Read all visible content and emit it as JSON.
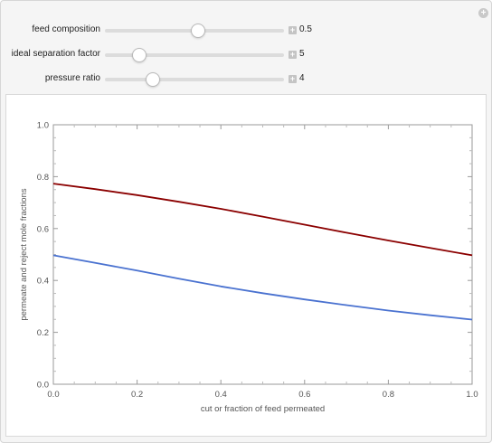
{
  "controls": [
    {
      "label": "feed composition",
      "value": "0.5",
      "fraction": 0.52
    },
    {
      "label": "ideal separation factor",
      "value": "5",
      "fraction": 0.19
    },
    {
      "label": "pressure ratio",
      "value": "4",
      "fraction": 0.27
    }
  ],
  "icons": {
    "corner": "plus-circle-icon",
    "stepper": "plus-icon"
  },
  "chart_data": {
    "type": "line",
    "xlabel": "cut or fraction of feed permeated",
    "ylabel": "permeate and reject mole fractions",
    "xlim": [
      0,
      1
    ],
    "ylim": [
      0,
      1
    ],
    "xticks": [
      "0.0",
      "0.2",
      "0.4",
      "0.6",
      "0.8",
      "1.0"
    ],
    "yticks": [
      "0.0",
      "0.2",
      "0.4",
      "0.6",
      "0.8",
      "1.0"
    ],
    "grid": false,
    "series": [
      {
        "color": "#8b0000",
        "x": [
          0,
          0.1,
          0.2,
          0.3,
          0.4,
          0.5,
          0.6,
          0.7,
          0.8,
          0.9,
          1.0
        ],
        "y": [
          0.773,
          0.752,
          0.729,
          0.703,
          0.676,
          0.646,
          0.615,
          0.584,
          0.554,
          0.525,
          0.497
        ]
      },
      {
        "color": "#4a72d0",
        "x": [
          0,
          0.1,
          0.2,
          0.3,
          0.4,
          0.5,
          0.6,
          0.7,
          0.8,
          0.9,
          1.0
        ],
        "y": [
          0.497,
          0.468,
          0.438,
          0.407,
          0.377,
          0.351,
          0.327,
          0.305,
          0.284,
          0.266,
          0.249
        ]
      }
    ]
  }
}
